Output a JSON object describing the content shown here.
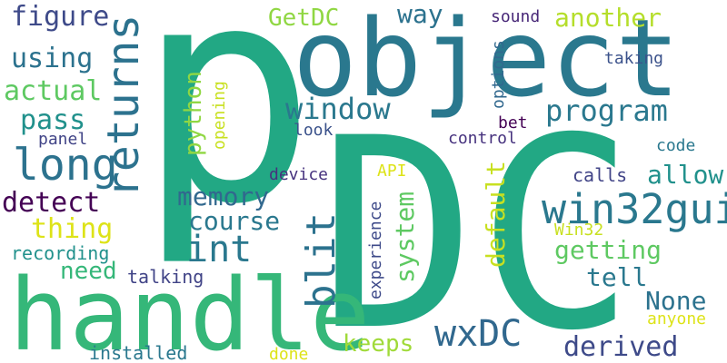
{
  "words": [
    {
      "text": "p",
      "color": "#22a884"
    },
    {
      "text": "object",
      "color": "#2a788e"
    },
    {
      "text": "DC",
      "color": "#22a884"
    },
    {
      "text": "handle",
      "color": "#35b779"
    },
    {
      "text": "returns",
      "color": "#2c728e"
    },
    {
      "text": "win32gui",
      "color": "#2a788e"
    },
    {
      "text": "long",
      "color": "#2c728e"
    },
    {
      "text": "int",
      "color": "#2a788e"
    },
    {
      "text": "blit",
      "color": "#2c728e"
    },
    {
      "text": "wxDC",
      "color": "#31688e"
    },
    {
      "text": "window",
      "color": "#2a788e"
    },
    {
      "text": "program",
      "color": "#2a788e"
    },
    {
      "text": "memory",
      "color": "#31688e"
    },
    {
      "text": "course",
      "color": "#2a788e"
    },
    {
      "text": "figure",
      "color": "#3e4a89"
    },
    {
      "text": "using",
      "color": "#2c728e"
    },
    {
      "text": "actual",
      "color": "#5ec962"
    },
    {
      "text": "pass",
      "color": "#21918c"
    },
    {
      "text": "detect",
      "color": "#440154"
    },
    {
      "text": "thing",
      "color": "#dde318"
    },
    {
      "text": "need",
      "color": "#35b779"
    },
    {
      "text": "recording",
      "color": "#21918c"
    },
    {
      "text": "GetDC",
      "color": "#90d743"
    },
    {
      "text": "way",
      "color": "#2c728e"
    },
    {
      "text": "another",
      "color": "#b5de2b"
    },
    {
      "text": "sound",
      "color": "#482878"
    },
    {
      "text": "taking",
      "color": "#3b528b"
    },
    {
      "text": "options",
      "color": "#31688e"
    },
    {
      "text": "python",
      "color": "#90d743"
    },
    {
      "text": "opening",
      "color": "#c8e020"
    },
    {
      "text": "panel",
      "color": "#414487"
    },
    {
      "text": "look",
      "color": "#3b528b"
    },
    {
      "text": "control",
      "color": "#46327e"
    },
    {
      "text": "bet",
      "color": "#440154"
    },
    {
      "text": "code",
      "color": "#2a788e"
    },
    {
      "text": "default",
      "color": "#c8e020"
    },
    {
      "text": "allow",
      "color": "#21918c"
    },
    {
      "text": "calls",
      "color": "#414487"
    },
    {
      "text": "device",
      "color": "#46327e"
    },
    {
      "text": "API",
      "color": "#dde318"
    },
    {
      "text": "system",
      "color": "#5ec962"
    },
    {
      "text": "experience",
      "color": "#3e4a89"
    },
    {
      "text": "getting",
      "color": "#5ec962"
    },
    {
      "text": "Win32",
      "color": "#c8e020"
    },
    {
      "text": "tell",
      "color": "#2a788e"
    },
    {
      "text": "None",
      "color": "#2c728e"
    },
    {
      "text": "anyone",
      "color": "#dde318"
    },
    {
      "text": "keeps",
      "color": "#a0da39"
    },
    {
      "text": "derived",
      "color": "#3e4a89"
    },
    {
      "text": "talking",
      "color": "#414487"
    },
    {
      "text": "installed",
      "color": "#2a788e"
    },
    {
      "text": "done",
      "color": "#dde318"
    }
  ]
}
